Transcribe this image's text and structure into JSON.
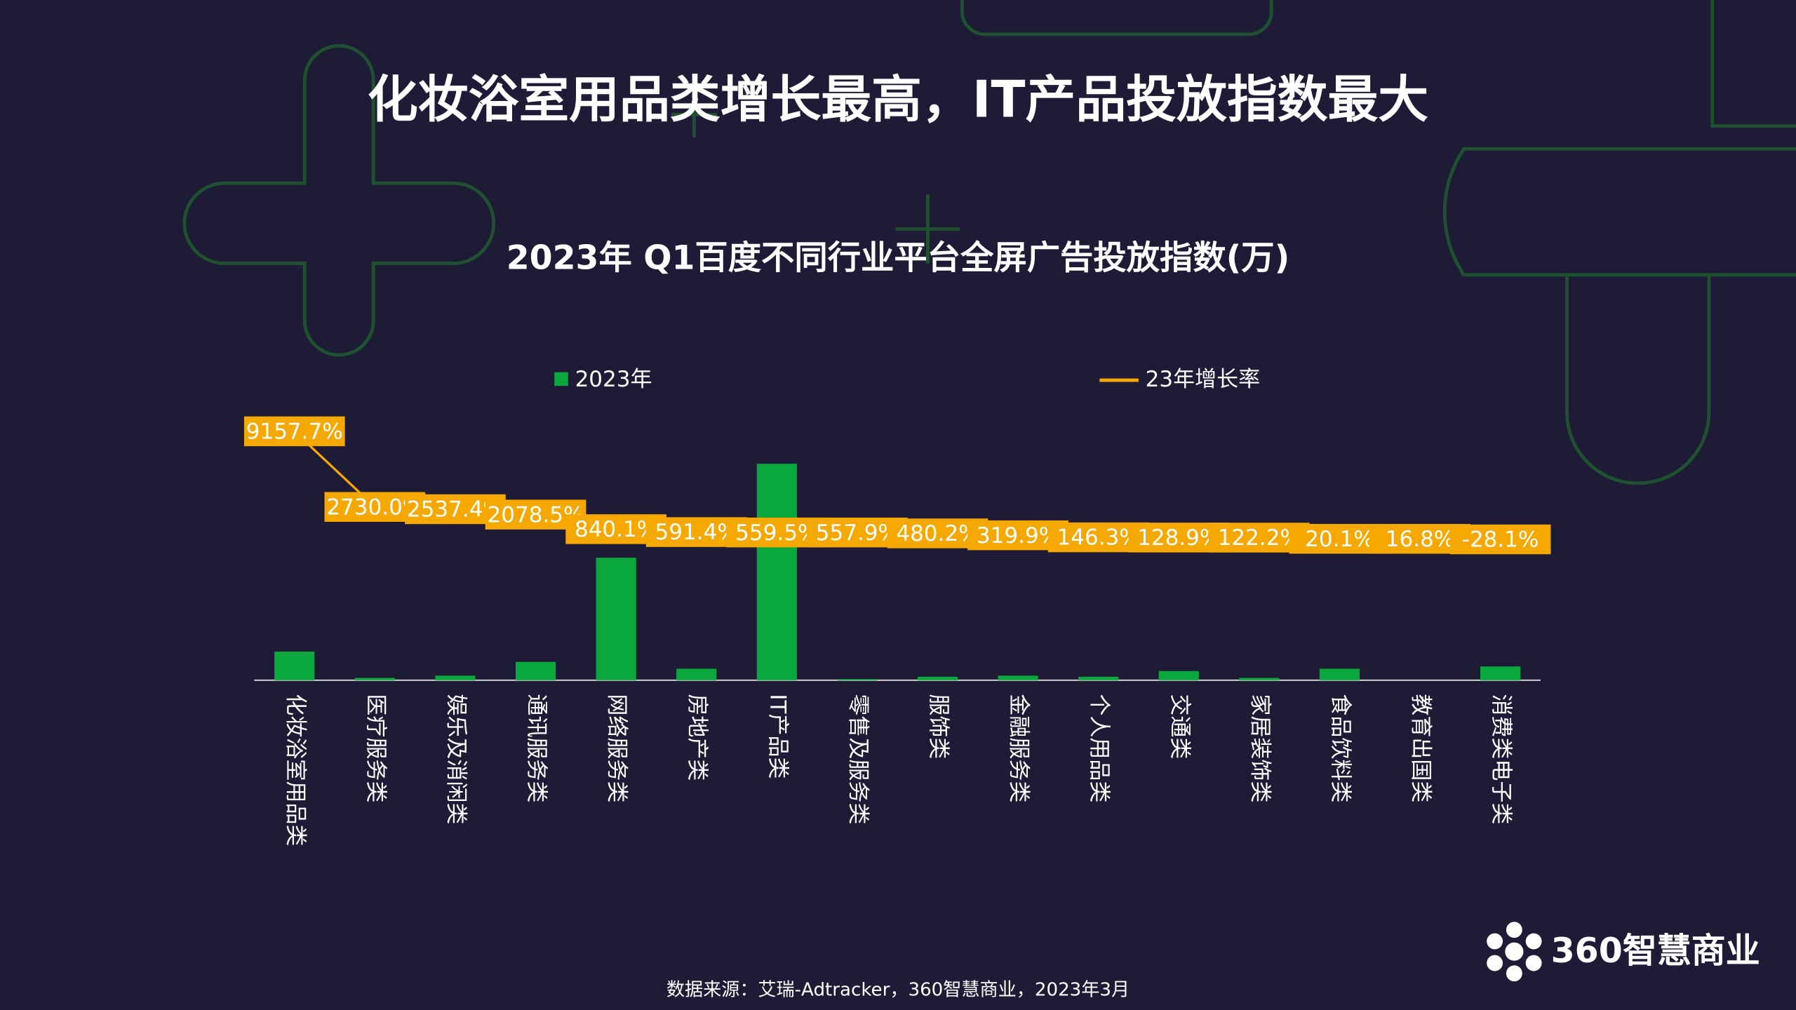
{
  "headline": "化妆浴室用品类增长最高，IT产品投放指数最大",
  "source": "数据来源：艾瑞-Adtracker，360智慧商业，2023年3月",
  "logo": "360智慧商业",
  "chart_data": {
    "type": "bar",
    "title": "2023年 Q1百度不同行业平台全屏广告投放指数(万)",
    "categories": [
      "化妆浴室用品类",
      "医疗服务类",
      "娱乐及消闲类",
      "通讯服务类",
      "网络服务类",
      "房地产类",
      "IT产品类",
      "零售及服务类",
      "服饰类",
      "金融服务类",
      "个人用品类",
      "交通类",
      "家居装饰类",
      "食品饮料类",
      "教育出国类",
      "消费类电子类"
    ],
    "ylim": [
      0,
      226
    ],
    "y2lim": [
      -12000,
      10000
    ],
    "series": [
      {
        "name": "2023年",
        "color": "#0aa83c",
        "values": [
          25,
          2,
          4,
          16,
          107,
          10,
          189,
          1,
          3,
          4,
          3,
          8,
          2,
          10,
          0,
          12
        ]
      },
      {
        "name": "23年增长率",
        "type": "line",
        "axis": "y2",
        "color": "#f5a800",
        "values": [
          9157.7,
          2730.0,
          2537.4,
          2078.5,
          840.1,
          591.4,
          559.5,
          557.9,
          480.2,
          319.9,
          146.3,
          128.9,
          122.2,
          20.1,
          16.8,
          -28.1
        ],
        "value_labels": [
          "9157.7%",
          "2730.0%",
          "2537.4%",
          "2078.5%",
          "840.1%",
          "591.4%",
          "559.5%",
          "557.9%",
          "480.2%",
          "319.9%",
          "146.3%",
          "128.9%",
          "122.2%",
          "20.1%",
          "16.8%",
          "-28.1%"
        ]
      }
    ]
  }
}
